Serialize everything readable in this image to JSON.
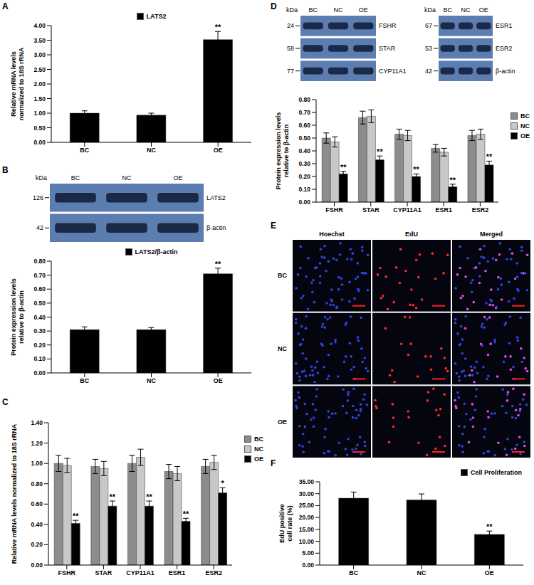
{
  "panel_letters": [
    "A",
    "B",
    "C",
    "D",
    "E",
    "F"
  ],
  "chart_data": [
    {
      "type": "bar",
      "categories": [
        "BC",
        "NC",
        "OE"
      ],
      "series": [
        {
          "name": "LATS2",
          "color": "#000000",
          "values": [
            1.0,
            0.93,
            3.52
          ],
          "errors": [
            0.08,
            0.07,
            0.28
          ],
          "annotations": [
            null,
            null,
            "**"
          ]
        }
      ],
      "ylabel": "Relative mRNA levels normalized to 18S rRNA",
      "ylim": [
        0,
        4
      ],
      "yticks": [
        {
          "value": 0,
          "label": "0.00"
        },
        {
          "value": 0.5,
          "label": "0.50"
        },
        {
          "value": 1,
          "label": "1.00"
        },
        {
          "value": 1.5,
          "label": "1.50"
        },
        {
          "value": 2,
          "label": "2.00"
        },
        {
          "value": 2.5,
          "label": "2.50"
        },
        {
          "value": 3,
          "label": "3.00"
        },
        {
          "value": 3.5,
          "label": "3.50"
        },
        {
          "value": 4,
          "label": "4.00"
        }
      ],
      "legend": "top"
    },
    {
      "type": "bar",
      "categories": [
        "BC",
        "NC",
        "OE"
      ],
      "series": [
        {
          "name": "LATS2/β-actin",
          "color": "#000000",
          "values": [
            0.31,
            0.31,
            0.71
          ],
          "errors": [
            0.02,
            0.015,
            0.04
          ],
          "annotations": [
            null,
            null,
            "**"
          ]
        }
      ],
      "ylabel": "Protein expression levels relative to β-actin",
      "ylim": [
        0,
        0.8
      ],
      "yticks": [
        {
          "value": 0,
          "label": "0.00"
        },
        {
          "value": 0.1,
          "label": "0.10"
        },
        {
          "value": 0.2,
          "label": "0.20"
        },
        {
          "value": 0.3,
          "label": "0.30"
        },
        {
          "value": 0.4,
          "label": "0.40"
        },
        {
          "value": 0.5,
          "label": "0.50"
        },
        {
          "value": 0.6,
          "label": "0.60"
        },
        {
          "value": 0.7,
          "label": "0.70"
        },
        {
          "value": 0.8,
          "label": "0.80"
        }
      ],
      "legend": "top"
    },
    {
      "type": "bar",
      "categories": [
        "FSHR",
        "STAR",
        "CYP11A1",
        "ESR1",
        "ESR2"
      ],
      "series": [
        {
          "name": "BC",
          "color": "#8c8c8c",
          "values": [
            1.0,
            0.97,
            1.0,
            0.92,
            0.97
          ],
          "errors": [
            0.08,
            0.07,
            0.08,
            0.07,
            0.07
          ],
          "annotations": [
            null,
            null,
            null,
            null,
            null
          ]
        },
        {
          "name": "NC",
          "color": "#c8c8c8",
          "values": [
            0.98,
            0.95,
            1.06,
            0.9,
            1.01
          ],
          "errors": [
            0.07,
            0.07,
            0.08,
            0.07,
            0.07
          ],
          "annotations": [
            null,
            null,
            null,
            null,
            null
          ]
        },
        {
          "name": "OE",
          "color": "#000000",
          "values": [
            0.41,
            0.58,
            0.58,
            0.43,
            0.71
          ],
          "errors": [
            0.03,
            0.05,
            0.05,
            0.03,
            0.05
          ],
          "annotations": [
            "**",
            "**",
            "**",
            "**",
            "*"
          ]
        }
      ],
      "ylabel": "Relative mRNA levels normalized to 18S rRNA",
      "ylim": [
        0,
        1.4
      ],
      "yticks": [
        {
          "value": 0,
          "label": "0.00"
        },
        {
          "value": 0.2,
          "label": "0.20"
        },
        {
          "value": 0.4,
          "label": "0.40"
        },
        {
          "value": 0.6,
          "label": "0.60"
        },
        {
          "value": 0.8,
          "label": "0.80"
        },
        {
          "value": 1,
          "label": "1.00"
        },
        {
          "value": 1.2,
          "label": "1.20"
        },
        {
          "value": 1.4,
          "label": "1.40"
        }
      ],
      "legend": "right"
    },
    {
      "type": "bar",
      "categories": [
        "FSHR",
        "STAR",
        "CYP11A1",
        "ESR1",
        "ESR2"
      ],
      "series": [
        {
          "name": "BC",
          "color": "#8c8c8c",
          "values": [
            0.5,
            0.66,
            0.53,
            0.42,
            0.52
          ],
          "errors": [
            0.04,
            0.05,
            0.04,
            0.03,
            0.04
          ],
          "annotations": [
            null,
            null,
            null,
            null,
            null
          ]
        },
        {
          "name": "NC",
          "color": "#c8c8c8",
          "values": [
            0.47,
            0.67,
            0.52,
            0.39,
            0.53
          ],
          "errors": [
            0.04,
            0.05,
            0.04,
            0.03,
            0.04
          ],
          "annotations": [
            null,
            null,
            null,
            null,
            null
          ]
        },
        {
          "name": "OE",
          "color": "#000000",
          "values": [
            0.22,
            0.33,
            0.2,
            0.12,
            0.29
          ],
          "errors": [
            0.02,
            0.03,
            0.02,
            0.02,
            0.03
          ],
          "annotations": [
            "**",
            "**",
            "**",
            "**",
            "**"
          ]
        }
      ],
      "ylabel": "Protein expression levels relative to β-actin",
      "ylim": [
        0,
        0.8
      ],
      "yticks": [
        {
          "value": 0,
          "label": "0.00"
        },
        {
          "value": 0.1,
          "label": "0.10"
        },
        {
          "value": 0.2,
          "label": "0.20"
        },
        {
          "value": 0.3,
          "label": "0.30"
        },
        {
          "value": 0.4,
          "label": "0.40"
        },
        {
          "value": 0.5,
          "label": "0.50"
        },
        {
          "value": 0.6,
          "label": "0.60"
        },
        {
          "value": 0.7,
          "label": "0.70"
        },
        {
          "value": 0.8,
          "label": "0.80"
        }
      ],
      "legend": "right"
    },
    {
      "type": "bar",
      "categories": [
        "BC",
        "NC",
        "OE"
      ],
      "series": [
        {
          "name": "Cell Proliferation",
          "color": "#000000",
          "values": [
            28.1,
            27.4,
            12.9
          ],
          "errors": [
            2.6,
            2.5,
            1.4
          ],
          "annotations": [
            null,
            null,
            "**"
          ]
        }
      ],
      "ylabel": "EdU positive cell rate (%)",
      "ylim": [
        0,
        35
      ],
      "yticks": [
        {
          "value": 0,
          "label": "0.00"
        },
        {
          "value": 5,
          "label": "5.00"
        },
        {
          "value": 10,
          "label": "10.00"
        },
        {
          "value": 15,
          "label": "15.00"
        },
        {
          "value": 20,
          "label": "20.00"
        },
        {
          "value": 25,
          "label": "25.00"
        },
        {
          "value": 30,
          "label": "30.00"
        },
        {
          "value": 35,
          "label": "35.00"
        }
      ],
      "legend": "top right"
    }
  ],
  "blots": [
    {
      "unit": "kDa",
      "lanes": [
        "BC",
        "NC",
        "OE"
      ],
      "bands": [
        {
          "size": 126,
          "name": "LATS2"
        },
        {
          "size": 42,
          "name": "β-actin"
        }
      ]
    },
    {
      "unit": "kDa",
      "lanes": [
        "BC",
        "NC",
        "OE"
      ],
      "bands": [
        {
          "size": 24,
          "name": "FSHR"
        },
        {
          "size": 58,
          "name": "STAR"
        },
        {
          "size": 77,
          "name": "CYP11A1"
        }
      ]
    },
    {
      "unit": "kDa",
      "lanes": [
        "BC",
        "NC",
        "OE"
      ],
      "bands": [
        {
          "size": 67,
          "name": "ESR1"
        },
        {
          "size": 53,
          "name": "ESR2"
        },
        {
          "size": 42,
          "name": "β-actin"
        }
      ]
    }
  ],
  "micrographs": {
    "columns": [
      "Hoechst",
      "EdU",
      "Merged"
    ],
    "rows": [
      "BC",
      "NC",
      "OE"
    ]
  }
}
